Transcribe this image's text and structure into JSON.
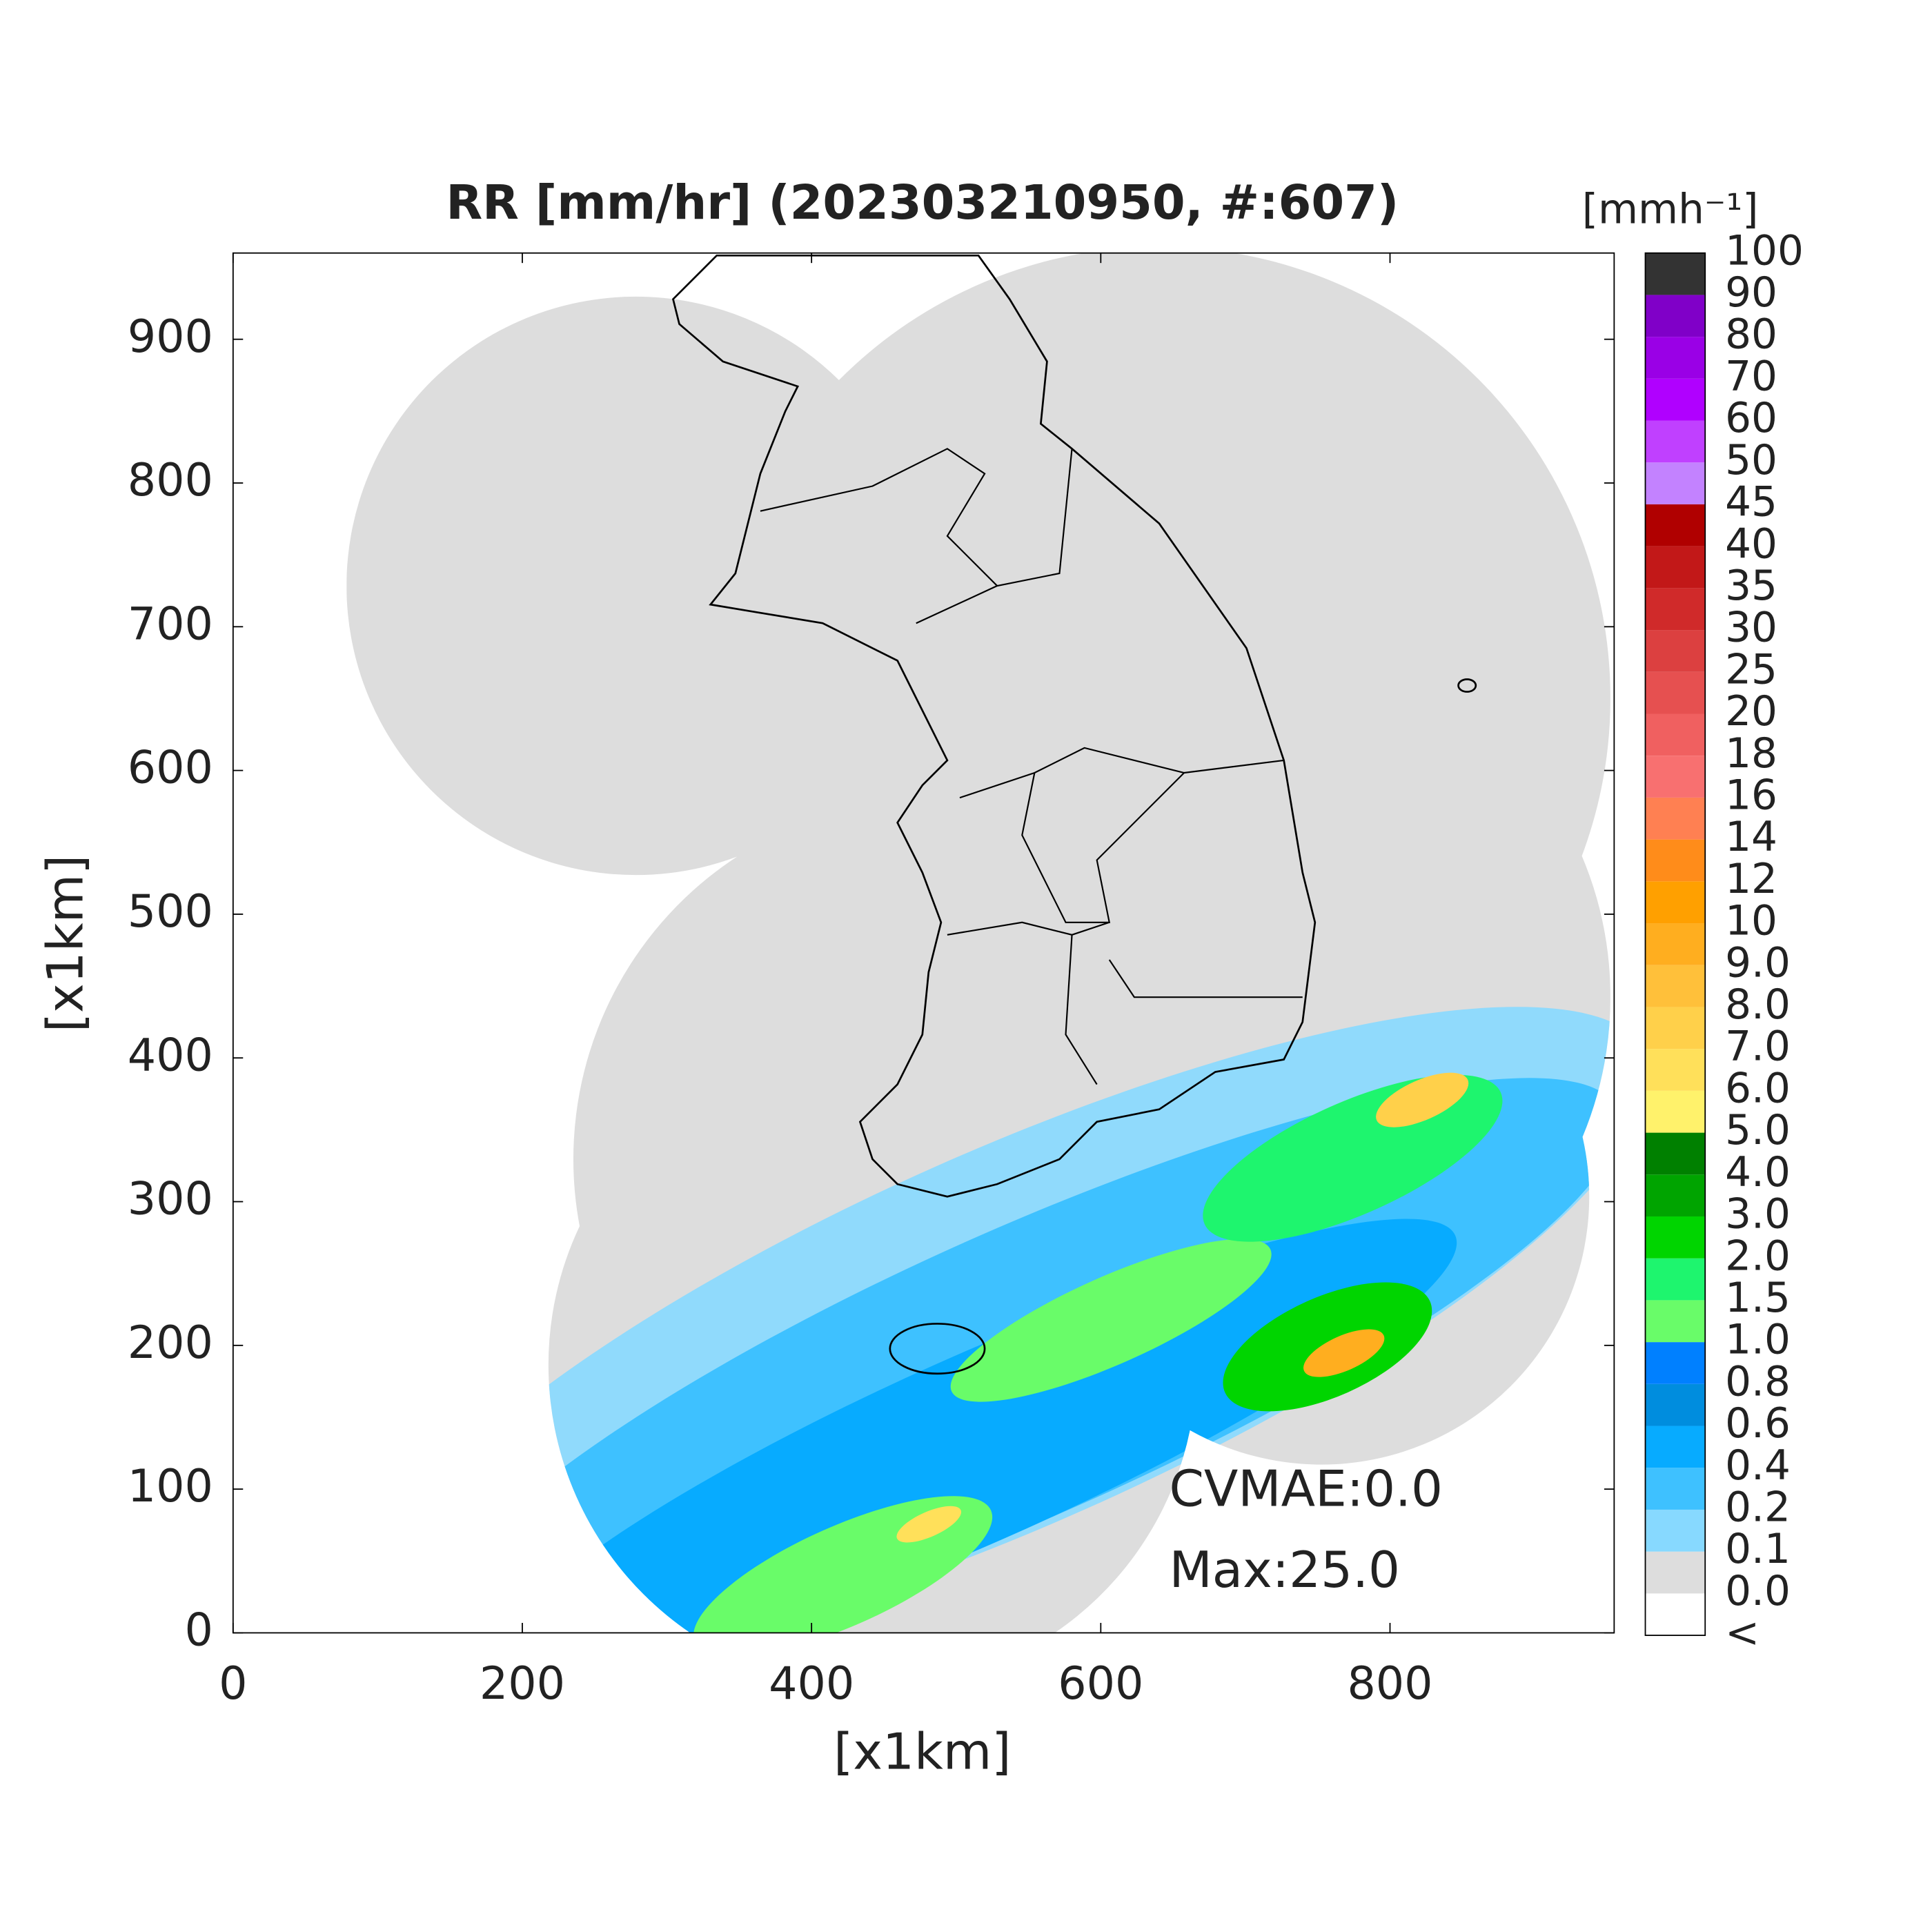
{
  "chart_data": {
    "type": "heatmap",
    "title": "RR [mm/hr] (202303210950, #:607)",
    "xlabel": "[x1km]",
    "ylabel": "[x1km]",
    "xlim": [
      0,
      955
    ],
    "ylim": [
      0,
      960
    ],
    "xticks": [
      0,
      200,
      400,
      600,
      800
    ],
    "yticks": [
      0,
      100,
      200,
      300,
      400,
      500,
      600,
      700,
      800,
      900
    ],
    "colorbar": {
      "title": "[mmh⁻¹]",
      "labels": [
        "<",
        "0.0",
        "0.1",
        "0.2",
        "0.4",
        "0.6",
        "0.8",
        "1.0",
        "1.5",
        "2.0",
        "3.0",
        "4.0",
        "5.0",
        "6.0",
        "7.0",
        "8.0",
        "9.0",
        "10",
        "12",
        "14",
        "16",
        "18",
        "20",
        "25",
        "30",
        "35",
        "40",
        "45",
        "50",
        "60",
        "70",
        "80",
        "90",
        "100"
      ],
      "colors": [
        "#ffffff",
        "#dddddd",
        "#87d9ff",
        "#3ec1ff",
        "#07abff",
        "#008dde",
        "#0080ff",
        "#69fc69",
        "#1ef56e",
        "#00d500",
        "#00a400",
        "#008000",
        "#fff26b",
        "#ffe05a",
        "#ffd04a",
        "#ffc03a",
        "#ffae1f",
        "#ffa000",
        "#ff8c1a",
        "#ff8052",
        "#f87070",
        "#f06060",
        "#e65050",
        "#dc4040",
        "#d02a2a",
        "#c21818",
        "#b00000",
        "#c382ff",
        "#c040ff",
        "#b000ff",
        "#9a00e6",
        "#8000c8",
        "#333333"
      ]
    },
    "annotations": [
      "CVMAE:0.0",
      "Max:25.0"
    ]
  }
}
